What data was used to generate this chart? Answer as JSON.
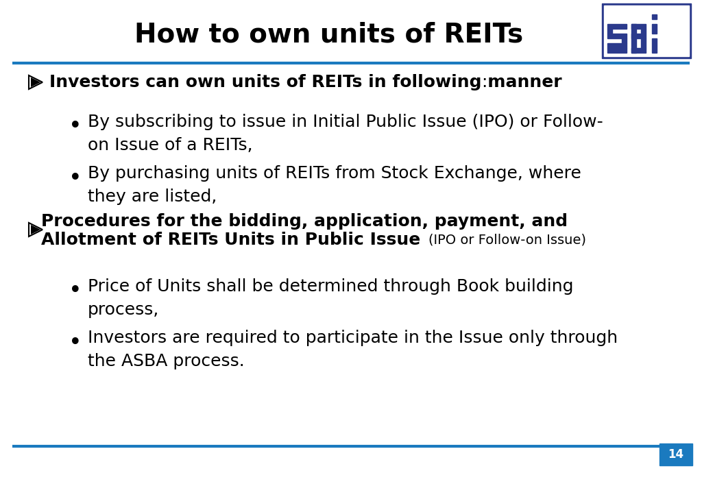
{
  "title": "How to own units of REITs",
  "title_fontsize": 28,
  "background_color": "#ffffff",
  "header_line_color": "#1a7abf",
  "footer_line_color": "#1a7abf",
  "footer_box_color": "#1a7abf",
  "footer_page_num": "14",
  "sebi_logo_color": "#2b3a8c",
  "bullet1_main_bold": "Investors can own units of REITs in following manner",
  "bullet1_main_normal": ":",
  "sub_bullets_1": [
    "By subscribing to issue in Initial Public Issue (IPO) or Follow-\non Issue of a REITs,",
    "By purchasing units of REITs from Stock Exchange, where\nthey are listed,"
  ],
  "bullet2_line1_bold": "Procedures for the bidding, application, payment, and",
  "bullet2_line2_bold": "Allotment of REITs Units in Public Issue ",
  "bullet2_line2_small": "(IPO or Follow-on Issue)",
  "sub_bullets_2": [
    "Price of Units shall be determined through Book building\nprocess,",
    "Investors are required to participate in the Issue only through\nthe ASBA process."
  ],
  "main_bullet_fontsize": 18,
  "sub_bullet_fontsize": 18,
  "small_text_fontsize": 14,
  "arrow_symbol": "➤"
}
